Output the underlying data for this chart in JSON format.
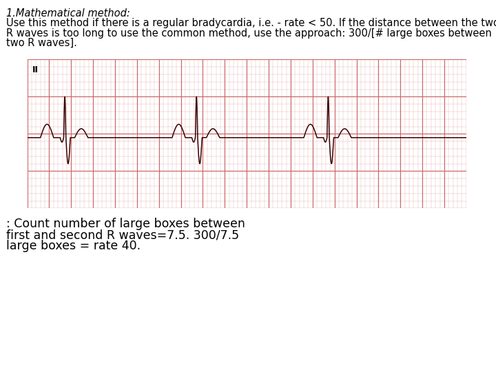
{
  "title_line": "1.Mathematical method:",
  "body_line1": "Use this method if there is a regular bradycardia, i.e. - rate < 50. If the distance between the two",
  "body_line2": "R waves is too long to use the common method, use the approach: 300/[# large boxes between",
  "body_line3": "two R waves].",
  "caption_line1": ": Count number of large boxes between",
  "caption_line2": "first and second R waves=7.5. 300/7.5",
  "caption_line3": "large boxes = rate 40.",
  "bg_color": "#ffffff",
  "ecg_bg": "#f0b8b8",
  "ecg_grid_major": "#cc6666",
  "ecg_grid_minor": "#dda0a0",
  "ecg_line_color": "#3a0000",
  "title_fontsize": 10.5,
  "body_fontsize": 10.5,
  "caption_fontsize": 12.5
}
